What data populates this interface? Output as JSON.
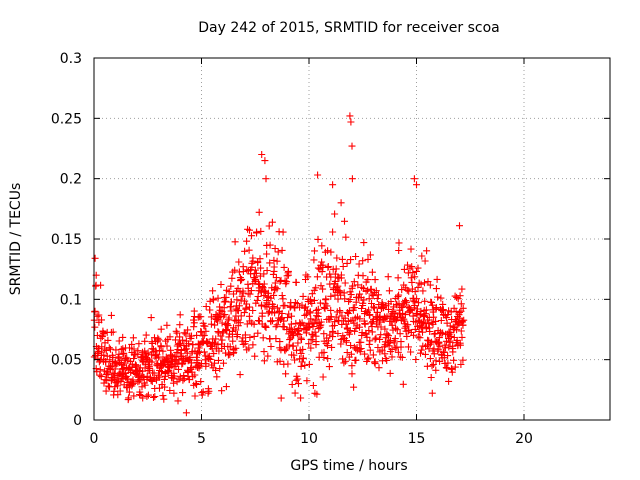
{
  "chart_data": {
    "type": "scatter",
    "title": "Day 242 of 2015, SRMTID for receiver scoa",
    "xlabel": "GPS time / hours",
    "ylabel": "SRMTID / TECUs",
    "xlim": [
      0,
      24
    ],
    "ylim": [
      0,
      0.3
    ],
    "xticks": [
      0,
      5,
      10,
      15,
      20
    ],
    "yticks": [
      0,
      0.05,
      0.1,
      0.15,
      0.2,
      0.25,
      0.3
    ],
    "xtick_labels": [
      "0",
      "5",
      "10",
      "15",
      "20"
    ],
    "ytick_labels": [
      "0",
      "0.05",
      "0.1",
      "0.15",
      "0.2",
      "0.25",
      "0.3"
    ],
    "grid": true,
    "marker": "+",
    "marker_color": "#ff0000",
    "series": [
      {
        "name": "SRMTID",
        "trend": [
          {
            "hour": 0.0,
            "center": 0.07,
            "spread": 0.03
          },
          {
            "hour": 0.5,
            "center": 0.045,
            "spread": 0.02
          },
          {
            "hour": 1.5,
            "center": 0.04,
            "spread": 0.015
          },
          {
            "hour": 3.0,
            "center": 0.045,
            "spread": 0.018
          },
          {
            "hour": 4.5,
            "center": 0.055,
            "spread": 0.02
          },
          {
            "hour": 5.5,
            "center": 0.065,
            "spread": 0.022
          },
          {
            "hour": 6.5,
            "center": 0.085,
            "spread": 0.03
          },
          {
            "hour": 7.5,
            "center": 0.11,
            "spread": 0.04
          },
          {
            "hour": 8.5,
            "center": 0.09,
            "spread": 0.035
          },
          {
            "hour": 9.5,
            "center": 0.07,
            "spread": 0.025
          },
          {
            "hour": 10.5,
            "center": 0.09,
            "spread": 0.035
          },
          {
            "hour": 11.5,
            "center": 0.1,
            "spread": 0.04
          },
          {
            "hour": 12.5,
            "center": 0.085,
            "spread": 0.03
          },
          {
            "hour": 13.5,
            "center": 0.08,
            "spread": 0.025
          },
          {
            "hour": 14.5,
            "center": 0.095,
            "spread": 0.03
          },
          {
            "hour": 15.5,
            "center": 0.08,
            "spread": 0.025
          },
          {
            "hour": 16.5,
            "center": 0.065,
            "spread": 0.022
          },
          {
            "hour": 17.2,
            "center": 0.08,
            "spread": 0.02
          }
        ],
        "sample_count": 1500,
        "x_range": [
          0,
          17.2
        ],
        "outliers": [
          {
            "x": 0.05,
            "y": 0.134
          },
          {
            "x": 0.1,
            "y": 0.12
          },
          {
            "x": 4.3,
            "y": 0.006
          },
          {
            "x": 7.8,
            "y": 0.22
          },
          {
            "x": 7.95,
            "y": 0.215
          },
          {
            "x": 8.0,
            "y": 0.2
          },
          {
            "x": 10.4,
            "y": 0.203
          },
          {
            "x": 11.1,
            "y": 0.195
          },
          {
            "x": 11.9,
            "y": 0.252
          },
          {
            "x": 11.95,
            "y": 0.247
          },
          {
            "x": 12.0,
            "y": 0.227
          },
          {
            "x": 12.02,
            "y": 0.2
          },
          {
            "x": 14.9,
            "y": 0.2
          },
          {
            "x": 15.0,
            "y": 0.195
          },
          {
            "x": 17.0,
            "y": 0.161
          }
        ]
      }
    ]
  }
}
